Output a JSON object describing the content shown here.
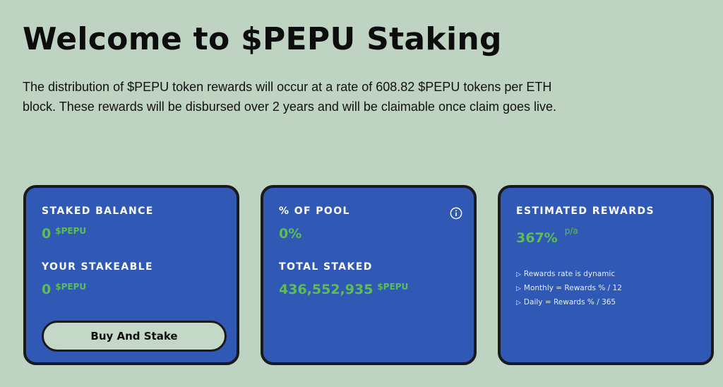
{
  "header": {
    "title": "Welcome to $PEPU Staking",
    "description": "The distribution of $PEPU token rewards will occur at a rate of 608.82 $PEPU tokens per ETH block. These rewards will be disbursed over 2 years and will be claimable once claim goes live."
  },
  "cards": {
    "balance": {
      "staked_label": "STAKED BALANCE",
      "staked_value": "0",
      "staked_unit": "$PEPU",
      "stakeable_label": "YOUR STAKEABLE",
      "stakeable_value": "0",
      "stakeable_unit": "$PEPU",
      "button_label": "Buy And Stake"
    },
    "pool": {
      "pool_label": "% OF POOL",
      "pool_value": "0%",
      "total_label": "TOTAL STAKED",
      "total_value": "436,552,935",
      "total_unit": "$PEPU",
      "info_icon": "info-icon"
    },
    "rewards": {
      "label": "ESTIMATED REWARDS",
      "value": "367%",
      "unit": "p/a",
      "notes_icon": "triangle-right-icon",
      "notes": [
        "Rewards rate is dynamic",
        "Monthly = Rewards % / 12",
        "Daily = Rewards % / 365"
      ]
    }
  },
  "colors": {
    "background": "#bfd3c3",
    "card": "#2f59b5",
    "accent_green": "#5fbd55",
    "border": "#1a1a1a"
  }
}
